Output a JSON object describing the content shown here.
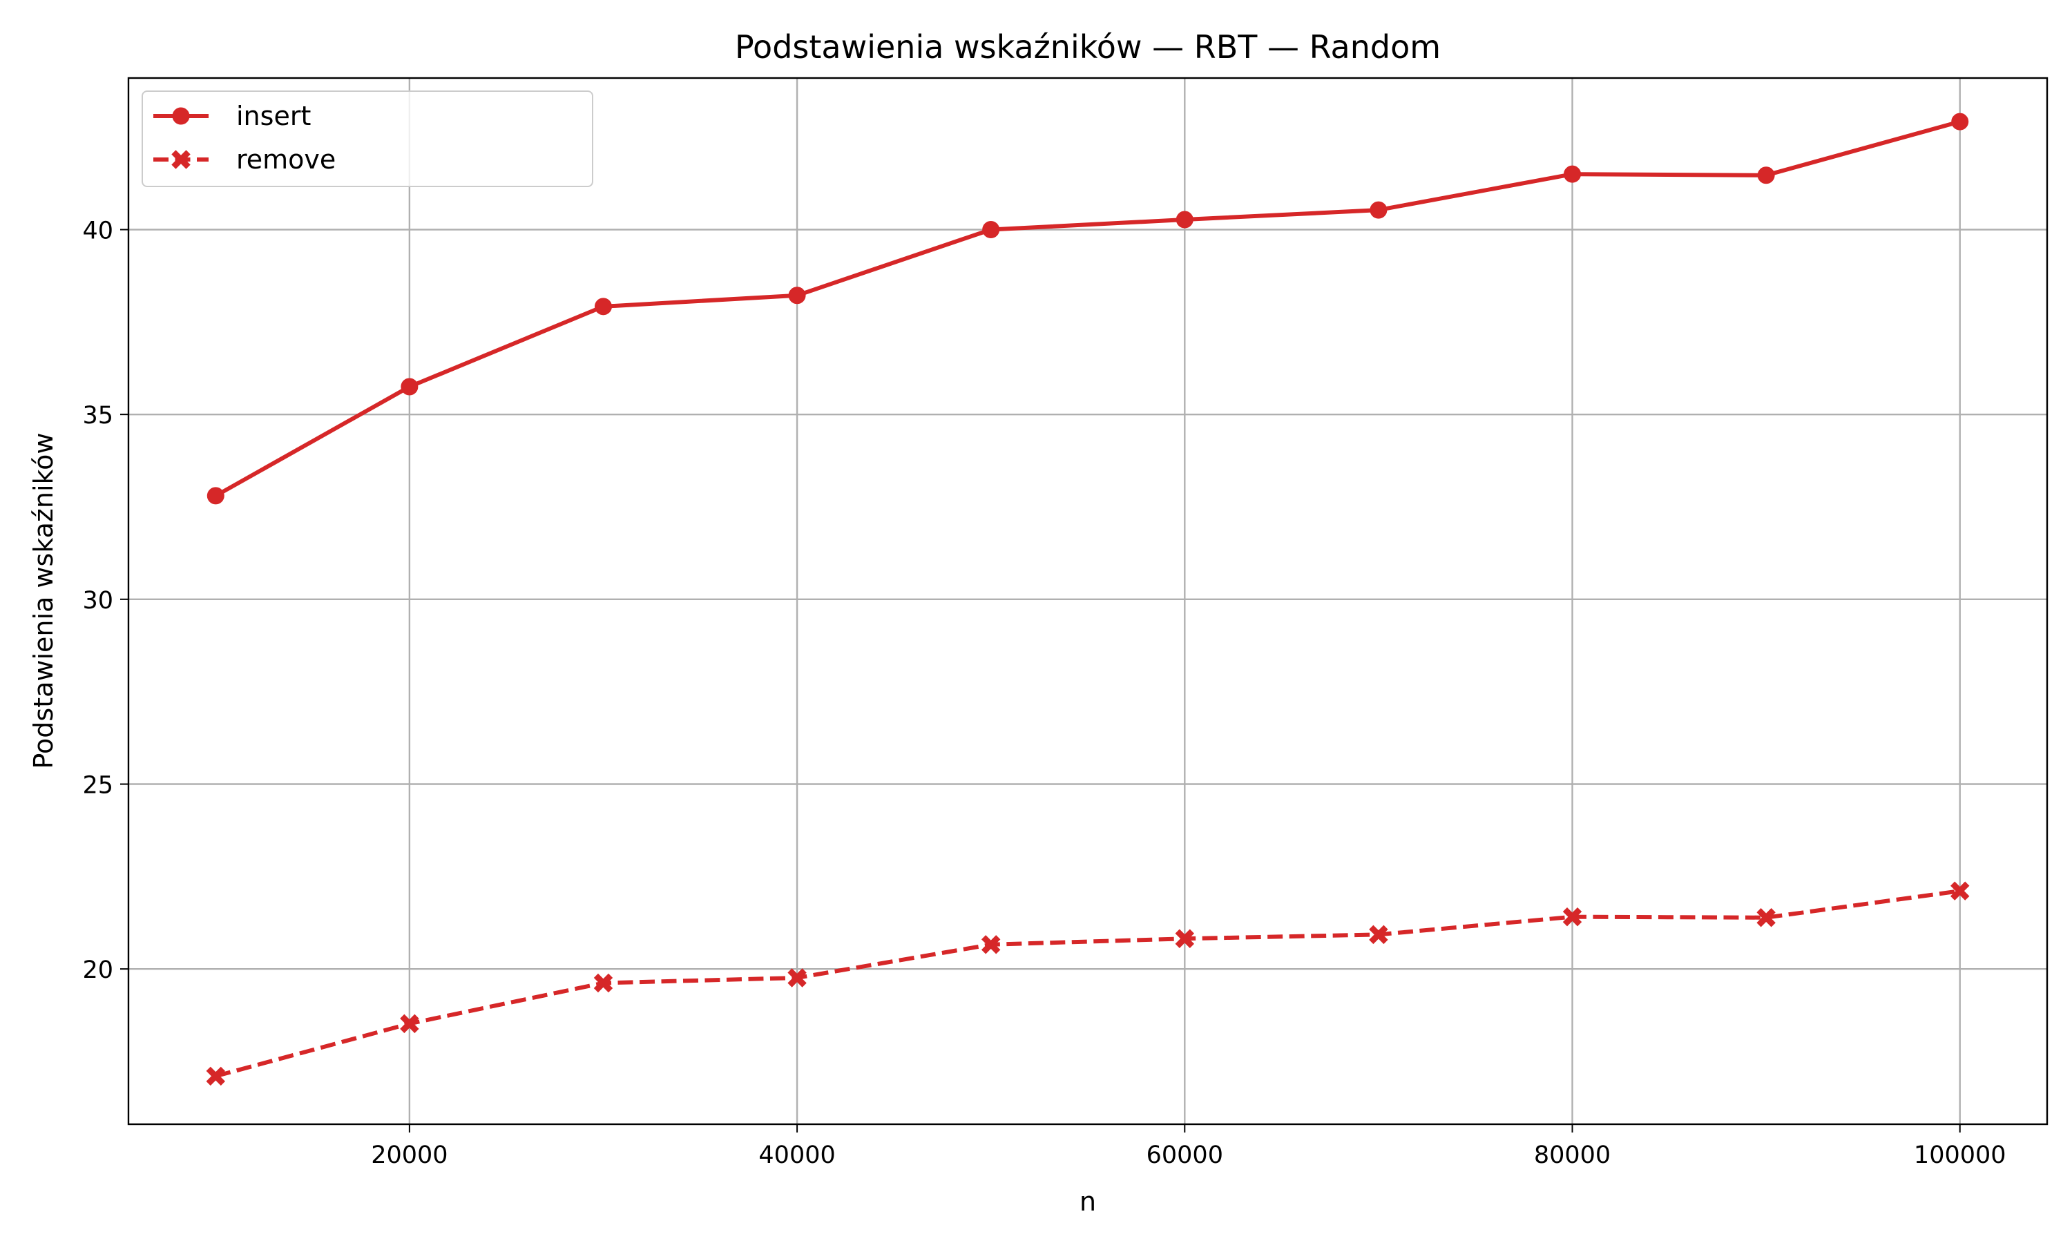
{
  "chart_data": {
    "type": "line",
    "title": "Podstawienia wskaźników — RBT — Random",
    "xlabel": "n",
    "ylabel": "Podstawienia wskaźników",
    "x": [
      10000,
      20000,
      30000,
      40000,
      50000,
      60000,
      70000,
      80000,
      90000,
      100000
    ],
    "xlim": [
      5500,
      104500
    ],
    "ylim": [
      15.8,
      44.1
    ],
    "xticks": [
      20000,
      40000,
      60000,
      80000,
      100000
    ],
    "yticks": [
      20,
      25,
      30,
      35,
      40
    ],
    "grid": true,
    "legend_position": "upper-left",
    "series": [
      {
        "name": "insert",
        "values": [
          32.8,
          35.75,
          37.92,
          38.22,
          40.0,
          40.27,
          40.53,
          41.5,
          41.47,
          42.92
        ],
        "color": "#d62728",
        "line_style": "solid",
        "marker": "circle"
      },
      {
        "name": "remove",
        "values": [
          17.1,
          18.52,
          19.62,
          19.76,
          20.66,
          20.82,
          20.93,
          21.41,
          21.39,
          22.11
        ],
        "color": "#d62728",
        "line_style": "dashed",
        "marker": "x-filled"
      }
    ]
  }
}
